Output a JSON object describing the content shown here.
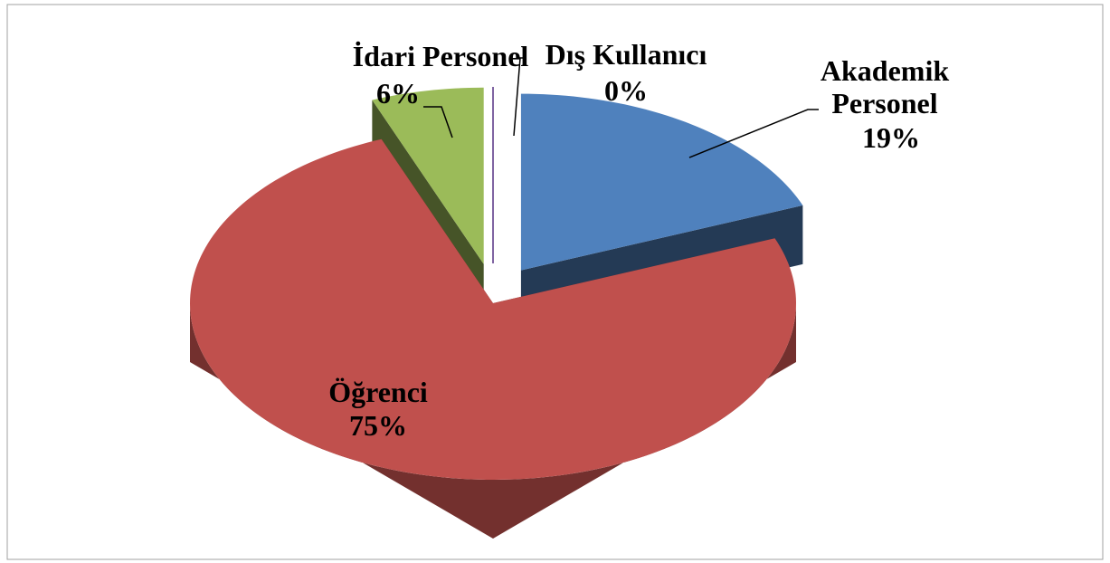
{
  "chart_data": {
    "type": "pie",
    "categories": [
      "Akademik Personel",
      "Öğrenci",
      "İdari Personel",
      "Dış Kullanıcı"
    ],
    "values": [
      19,
      75,
      6,
      0
    ],
    "value_labels": [
      "19%",
      "75%",
      "6%",
      "0%"
    ],
    "colors": [
      "#4f81bd",
      "#c0504d",
      "#9bbb59",
      "#8064a2"
    ],
    "style": "3d",
    "exploded": [
      true,
      false,
      true,
      true
    ]
  }
}
